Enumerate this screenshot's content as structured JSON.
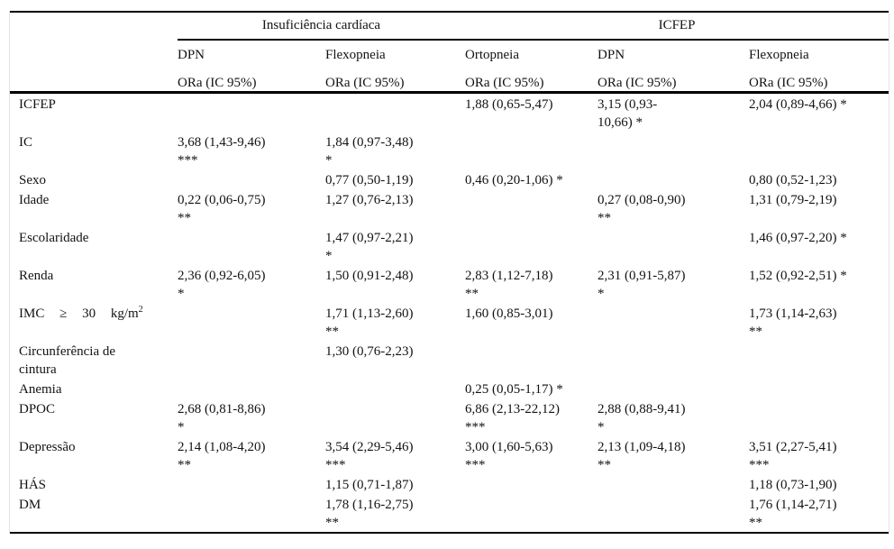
{
  "table": {
    "col_groups": [
      {
        "label": "Insuficiência cardíaca",
        "span": 2
      },
      {
        "label": "ICFEP",
        "span": 3
      }
    ],
    "sub_headers": [
      "DPN",
      "Flexopneia",
      "Ortopneia",
      "DPN",
      "Flexopneia"
    ],
    "measure_row": [
      "ORa (IC 95%)",
      "ORa (IC 95%)",
      "ORa (IC 95%)",
      "ORa (IC 95%)",
      "ORa (IC 95%)"
    ],
    "rows": [
      {
        "label": "ICFEP",
        "cells": [
          "",
          "",
          "1,88 (0,65-5,47)",
          "3,15 (0,93-\n10,66) *",
          "2,04 (0,89-4,66) *"
        ]
      },
      {
        "label": "IC",
        "cells": [
          "3,68 (1,43-9,46)\n***",
          "1,84 (0,97-3,48)\n*",
          "",
          "",
          ""
        ]
      },
      {
        "label": "Sexo",
        "cells": [
          "",
          "0,77 (0,50-1,19)",
          "0,46 (0,20-1,06) *",
          "",
          "0,80 (0,52-1,23)"
        ]
      },
      {
        "label": "Idade",
        "cells": [
          "0,22 (0,06-0,75)\n**",
          "1,27 (0,76-2,13)",
          "",
          "0,27 (0,08-0,90)\n**",
          "1,31 (0,79-2,19)"
        ]
      },
      {
        "label": "Escolaridade",
        "cells": [
          "",
          "1,47 (0,97-2,21)\n*",
          "",
          "",
          "1,46 (0,97-2,20) *"
        ]
      },
      {
        "label": "Renda",
        "cells": [
          "2,36 (0,92-6,05)\n*",
          "1,50 (0,91-2,48)",
          "2,83 (1,12-7,18)\n**",
          "2,31 (0,91-5,87)\n*",
          "1,52 (0,92-2,51) *"
        ]
      },
      {
        "label": "IMC ≥ 30 kg/m",
        "label_sup": "2",
        "wide": true,
        "cells": [
          "",
          "1,71 (1,13-2,60)\n**",
          "1,60 (0,85-3,01)",
          "",
          "1,73 (1,14-2,63)\n**"
        ]
      },
      {
        "label": "Circunferência de\ncintura",
        "cells": [
          "",
          "1,30 (0,76-2,23)",
          "",
          "",
          ""
        ]
      },
      {
        "label": "Anemia",
        "cells": [
          "",
          "",
          "0,25 (0,05-1,17) *",
          "",
          ""
        ]
      },
      {
        "label": "DPOC",
        "cells": [
          "2,68 (0,81-8,86)\n*",
          "",
          "6,86 (2,13-22,12)\n***",
          "2,88 (0,88-9,41)\n*",
          ""
        ]
      },
      {
        "label": "Depressão",
        "cells": [
          "2,14 (1,08-4,20)\n**",
          "3,54 (2,29-5,46)\n***",
          "3,00 (1,60-5,63)\n***",
          "2,13 (1,09-4,18)\n**",
          "3,51 (2,27-5,41)\n***"
        ]
      },
      {
        "label": "HÁS",
        "cells": [
          "",
          "1,15 (0,71-1,87)",
          "",
          "",
          "1,18 (0,73-1,90)"
        ]
      },
      {
        "label": "DM",
        "cells": [
          "",
          "1,78 (1,16-2,75)\n**",
          "",
          "",
          "1,76 (1,14-2,71)\n**"
        ]
      }
    ]
  }
}
